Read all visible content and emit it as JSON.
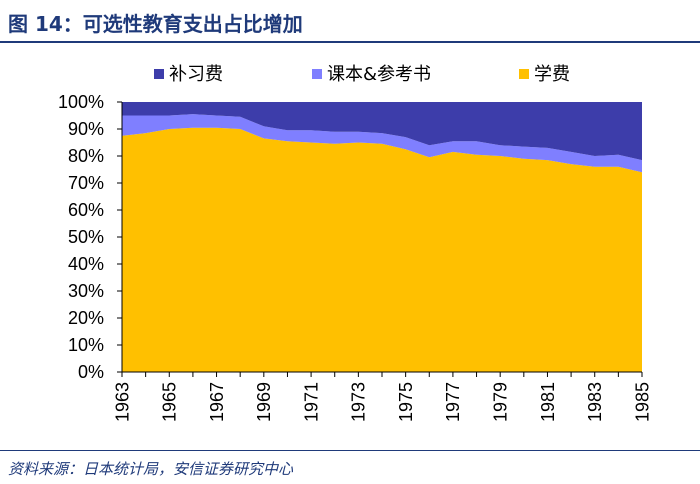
{
  "figure": {
    "title": "图 14：可选性教育支出占比增加",
    "source": "资料来源：日本统计局，安信证券研究中心"
  },
  "chart_data": {
    "type": "area",
    "stacked": true,
    "percent": true,
    "categories": [
      1963,
      1964,
      1965,
      1966,
      1967,
      1968,
      1969,
      1970,
      1971,
      1972,
      1973,
      1974,
      1975,
      1976,
      1977,
      1978,
      1979,
      1980,
      1981,
      1982,
      1983,
      1984,
      1985
    ],
    "x_tick_labels": [
      "1963",
      "1965",
      "1967",
      "1969",
      "1971",
      "1973",
      "1975",
      "1977",
      "1979",
      "1981",
      "1983",
      "1985"
    ],
    "y_tick_labels": [
      "0%",
      "10%",
      "20%",
      "30%",
      "40%",
      "50%",
      "60%",
      "70%",
      "80%",
      "90%",
      "100%"
    ],
    "ylim": [
      0,
      100
    ],
    "series": [
      {
        "name": "学费",
        "color": "#ffc000",
        "values": [
          87.5,
          88.5,
          90.0,
          90.5,
          90.5,
          90.0,
          86.5,
          85.5,
          85.0,
          84.5,
          85.0,
          84.5,
          82.5,
          79.5,
          81.5,
          80.5,
          80.0,
          79.0,
          78.5,
          77.0,
          76.0,
          76.0,
          74.0
        ]
      },
      {
        "name": "课本&参考书",
        "color": "#7f7fff",
        "values": [
          7.5,
          6.5,
          5.0,
          5.0,
          4.5,
          4.5,
          4.5,
          4.0,
          4.5,
          4.5,
          4.0,
          4.0,
          4.5,
          4.5,
          4.0,
          5.0,
          4.0,
          4.5,
          4.5,
          4.5,
          4.0,
          4.5,
          4.5
        ]
      },
      {
        "name": "补习费",
        "color": "#3d3daa",
        "values": [
          5.0,
          5.0,
          5.0,
          4.5,
          5.0,
          5.5,
          9.0,
          10.5,
          10.5,
          11.0,
          11.0,
          11.5,
          13.0,
          16.0,
          14.5,
          14.5,
          16.0,
          16.5,
          17.0,
          18.5,
          20.0,
          19.5,
          21.5
        ]
      }
    ],
    "legend": {
      "position": "top",
      "order": [
        "补习费",
        "课本&参考书",
        "学费"
      ]
    }
  }
}
